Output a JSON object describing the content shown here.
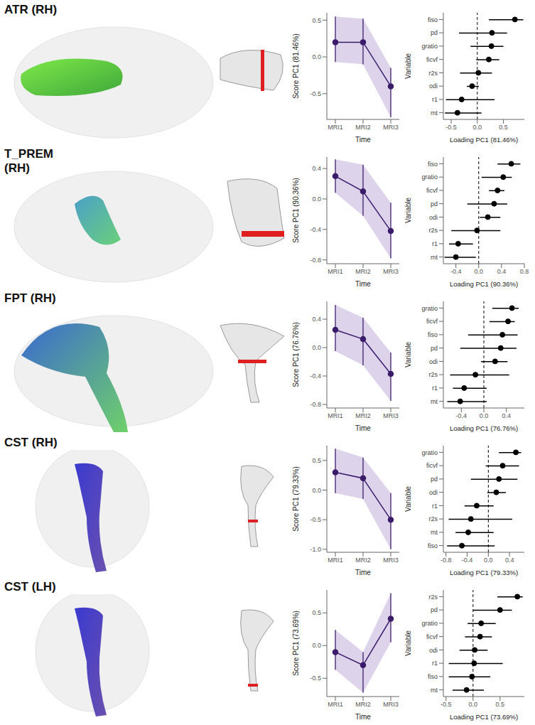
{
  "chart_data": [
    {
      "type": "line",
      "title": "ATR (RH)",
      "categories": [
        "MRI1",
        "MRI2",
        "MRI3"
      ],
      "values": [
        0.2,
        0.2,
        -0.4
      ],
      "lower": [
        -0.07,
        -0.1,
        -0.82
      ],
      "upper": [
        0.55,
        0.52,
        -0.15
      ],
      "ylim": [
        -0.85,
        0.6
      ],
      "yticks": [
        -0.5,
        {
          "value": 0,
          "label": "0.0"
        },
        0.5
      ],
      "x_label": "Time",
      "y_label": "Score PC1 (81.46%)",
      "color": "#3b1c6b"
    },
    {
      "type": "forest",
      "orientation": "horizontal",
      "categories": [
        "fiso",
        "pd",
        "gratio",
        "ficvf",
        "r2s",
        "odi",
        "r1",
        "mt"
      ],
      "values": [
        0.72,
        0.28,
        0.27,
        0.22,
        0.02,
        -0.1,
        -0.3,
        -0.38
      ],
      "lower": [
        0.22,
        -0.35,
        -0.13,
        -0.02,
        -0.33,
        -0.2,
        -0.6,
        -0.62
      ],
      "upper": [
        0.88,
        0.57,
        0.5,
        0.42,
        0.28,
        0.03,
        0.33,
        0.08
      ],
      "xlim": [
        -0.65,
        0.9
      ],
      "xticks": [
        -0.5,
        {
          "value": 0,
          "label": "0.0"
        },
        0.5
      ],
      "x_label": "Loading PC1 (81.46%)",
      "y_label": "Variable",
      "color": "#000000"
    },
    {
      "type": "line",
      "title": "T_PREM (RH)",
      "categories": [
        "MRI1",
        "MRI2",
        "MRI3"
      ],
      "values": [
        0.3,
        0.1,
        -0.42
      ],
      "lower": [
        0.08,
        -0.22,
        -0.78
      ],
      "upper": [
        0.52,
        0.45,
        -0.05
      ],
      "ylim": [
        -0.85,
        0.55
      ],
      "yticks": [
        -0.8,
        -0.4,
        {
          "value": 0,
          "label": "0.0"
        },
        0.4
      ],
      "x_label": "Time",
      "y_label": "Score PC1 (90.36%)",
      "color": "#3b1c6b"
    },
    {
      "type": "forest",
      "orientation": "horizontal",
      "categories": [
        "fiso",
        "gratio",
        "ficvf",
        "pd",
        "odi",
        "r2s",
        "r1",
        "mt"
      ],
      "values": [
        0.57,
        0.43,
        0.33,
        0.27,
        0.16,
        -0.03,
        -0.36,
        -0.4
      ],
      "lower": [
        0.33,
        0.05,
        0.18,
        -0.2,
        0.02,
        -0.48,
        -0.52,
        -0.6
      ],
      "upper": [
        0.73,
        0.58,
        0.45,
        0.5,
        0.38,
        0.38,
        -0.1,
        -0.05
      ],
      "xlim": [
        -0.62,
        0.8
      ],
      "xticks": [
        -0.4,
        {
          "value": 0,
          "label": "0.0"
        },
        0.4,
        0.8
      ],
      "x_label": "Loading PC1 (90.36%)",
      "y_label": "Variable",
      "color": "#000000"
    },
    {
      "type": "line",
      "title": "FPT (RH)",
      "categories": [
        "MRI1",
        "MRI2",
        "MRI3"
      ],
      "values": [
        0.25,
        0.12,
        -0.37
      ],
      "lower": [
        -0.05,
        -0.25,
        -0.75
      ],
      "upper": [
        0.6,
        0.42,
        -0.07
      ],
      "ylim": [
        -0.85,
        0.65
      ],
      "yticks": [
        -0.8,
        -0.4,
        {
          "value": 0,
          "label": "0.0"
        },
        0.4
      ],
      "x_label": "Time",
      "y_label": "Score PC1 (76.76%)",
      "color": "#3b1c6b"
    },
    {
      "type": "forest",
      "orientation": "horizontal",
      "categories": [
        "gratio",
        "ficvf",
        "fiso",
        "pd",
        "odi",
        "r2s",
        "r1",
        "mt"
      ],
      "values": [
        0.5,
        0.43,
        0.33,
        0.3,
        0.2,
        -0.15,
        -0.35,
        -0.42
      ],
      "lower": [
        0.15,
        0.1,
        -0.28,
        -0.42,
        -0.05,
        -0.6,
        -0.55,
        -0.65
      ],
      "upper": [
        0.62,
        0.55,
        0.6,
        0.58,
        0.42,
        0.45,
        0.05,
        0.05
      ],
      "xlim": [
        -0.72,
        0.72
      ],
      "xticks": [
        -0.4,
        {
          "value": 0,
          "label": "0.0"
        },
        0.4
      ],
      "x_label": "Loading PC1 (76.76%)",
      "y_label": "Variable",
      "color": "#000000"
    },
    {
      "type": "line",
      "title": "CST (RH)",
      "categories": [
        "MRI1",
        "MRI2",
        "MRI3"
      ],
      "values": [
        0.3,
        0.2,
        -0.5
      ],
      "lower": [
        -0.05,
        -0.15,
        -1.0
      ],
      "upper": [
        0.7,
        0.55,
        -0.05
      ],
      "ylim": [
        -1.05,
        0.75
      ],
      "yticks": [
        {
          "value": -1,
          "label": "-1.0"
        },
        -0.5,
        {
          "value": 0,
          "label": "0.0"
        },
        0.5
      ],
      "x_label": "Time",
      "y_label": "Score PC1 (79.33%)",
      "color": "#3b1c6b"
    },
    {
      "type": "forest",
      "orientation": "horizontal",
      "categories": [
        "gratio",
        "ficvf",
        "pd",
        "odi",
        "r1",
        "r2s",
        "mt",
        "fiso"
      ],
      "values": [
        0.52,
        0.27,
        0.2,
        0.15,
        -0.22,
        -0.33,
        -0.38,
        -0.5
      ],
      "lower": [
        0.2,
        -0.05,
        -0.33,
        -0.02,
        -0.45,
        -0.75,
        -0.62,
        -0.78
      ],
      "upper": [
        0.62,
        0.58,
        0.55,
        0.33,
        0.1,
        0.45,
        0.1,
        0.12
      ],
      "xlim": [
        -0.85,
        0.68
      ],
      "xticks": [
        -0.8,
        -0.4,
        {
          "value": 0,
          "label": "0.0"
        },
        0.4
      ],
      "x_label": "Loading PC1 (79.33%)",
      "y_label": "Variable",
      "color": "#000000"
    },
    {
      "type": "line",
      "title": "CST (LH)",
      "categories": [
        "MRI1",
        "MRI2",
        "MRI3"
      ],
      "values": [
        -0.1,
        -0.3,
        0.41
      ],
      "lower": [
        -0.37,
        -0.72,
        0.05
      ],
      "upper": [
        0.24,
        -0.1,
        0.8
      ],
      "ylim": [
        -0.78,
        0.85
      ],
      "yticks": [
        -0.5,
        {
          "value": 0,
          "label": "0.0"
        },
        0.5
      ],
      "x_label": "Time",
      "y_label": "Score PC1 (73.69%)",
      "color": "#3b1c6b"
    },
    {
      "type": "forest",
      "orientation": "horizontal",
      "categories": [
        "r2s",
        "pd",
        "gratio",
        "ficvf",
        "odi",
        "r1",
        "fiso",
        "mt"
      ],
      "values": [
        0.82,
        0.5,
        0.15,
        0.13,
        0.03,
        0.02,
        -0.02,
        -0.12
      ],
      "lower": [
        0.45,
        0.0,
        -0.1,
        -0.15,
        -0.25,
        -0.45,
        -0.45,
        -0.38
      ],
      "upper": [
        0.92,
        0.72,
        0.42,
        0.35,
        0.27,
        0.55,
        0.32,
        0.2
      ],
      "xlim": [
        -0.55,
        0.95
      ],
      "xticks": [
        -0.5,
        {
          "value": 0,
          "label": "0.0"
        },
        0.5
      ],
      "x_label": "Loading PC1 (73.69%)",
      "y_label": "Variable",
      "color": "#000000"
    }
  ]
}
